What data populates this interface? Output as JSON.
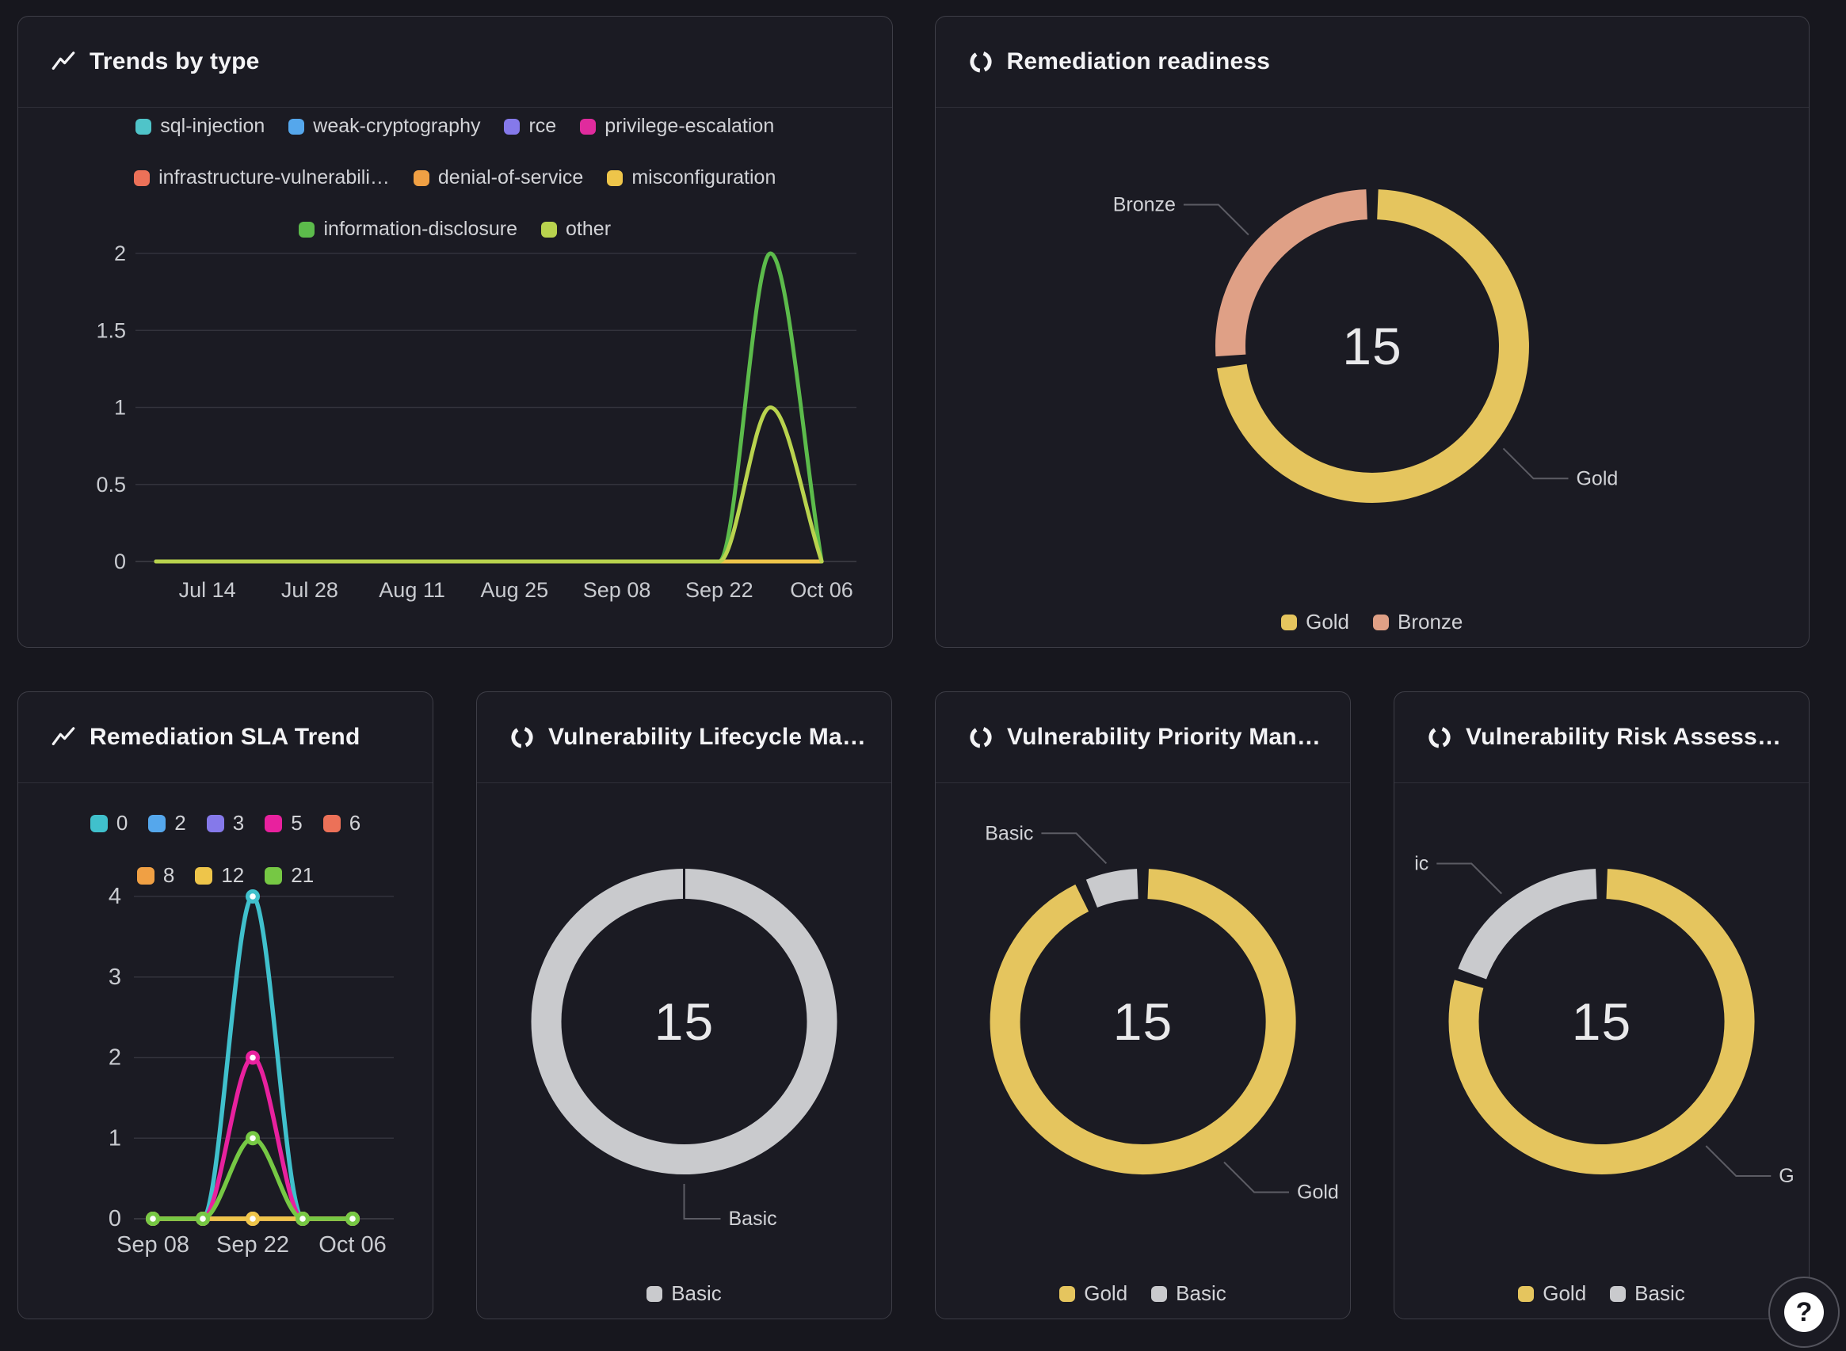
{
  "help": {
    "label": "?"
  },
  "colors": {
    "page_bg": "#17171e",
    "card_bg": "#1b1b23",
    "card_border": "#3e3e47",
    "gold": "#e5c55e",
    "bronze": "#dfa086",
    "basic_gray": "#c9cacd"
  },
  "panels": [
    {
      "id": "trends-by-type",
      "title": "Trends by type",
      "icon": "line-chart-icon"
    },
    {
      "id": "remediation-readiness",
      "title": "Remediation readiness",
      "icon": "donut-chart-icon"
    },
    {
      "id": "remediation-sla-trend",
      "title": "Remediation SLA Trend",
      "icon": "line-chart-icon"
    },
    {
      "id": "vulnerability-lifecycle",
      "title": "Vulnerability Lifecycle Ma…",
      "icon": "donut-chart-icon"
    },
    {
      "id": "vulnerability-priority",
      "title": "Vulnerability Priority Man…",
      "icon": "donut-chart-icon"
    },
    {
      "id": "vulnerability-risk",
      "title": "Vulnerability Risk Assess…",
      "icon": "donut-chart-icon"
    }
  ],
  "chart_data": [
    {
      "panel": "trends-by-type",
      "type": "line",
      "title": "Trends by type",
      "smooth": true,
      "grid": true,
      "legend_position": "top",
      "x": [
        "Jul 07",
        "Jul 14",
        "Jul 21",
        "Jul 28",
        "Aug 04",
        "Aug 11",
        "Aug 18",
        "Aug 25",
        "Sep 01",
        "Sep 08",
        "Sep 15",
        "Sep 22",
        "Sep 29",
        "Oct 06"
      ],
      "x_tick_labels": [
        "Jul 14",
        "Jul 28",
        "Aug 11",
        "Aug 25",
        "Sep 08",
        "Sep 22",
        "Oct 06"
      ],
      "y_ticks": [
        2,
        1.5,
        1,
        0.5,
        0
      ],
      "ylim": [
        0,
        2
      ],
      "legend_rows": [
        [
          "sql-injection",
          "weak-cryptography",
          "rce",
          "privilege-escalation"
        ],
        [
          "infrastructure-vulnerabili…",
          "denial-of-service",
          "misconfiguration"
        ],
        [
          "information-disclosure",
          "other"
        ]
      ],
      "series": [
        {
          "name": "sql-injection",
          "color": "#4fc4c9",
          "values": [
            0,
            0,
            0,
            0,
            0,
            0,
            0,
            0,
            0,
            0,
            0,
            0,
            0,
            0
          ]
        },
        {
          "name": "weak-cryptography",
          "color": "#55a7ec",
          "values": [
            0,
            0,
            0,
            0,
            0,
            0,
            0,
            0,
            0,
            0,
            0,
            0,
            0,
            0
          ]
        },
        {
          "name": "rce",
          "color": "#8579ea",
          "values": [
            0,
            0,
            0,
            0,
            0,
            0,
            0,
            0,
            0,
            0,
            0,
            0,
            0,
            0
          ]
        },
        {
          "name": "privilege-escalation",
          "color": "#e02b9d",
          "values": [
            0,
            0,
            0,
            0,
            0,
            0,
            0,
            0,
            0,
            0,
            0,
            0,
            0,
            0
          ]
        },
        {
          "name": "infrastructure-vulnerabili…",
          "color": "#ec7158",
          "values": [
            0,
            0,
            0,
            0,
            0,
            0,
            0,
            0,
            0,
            0,
            0,
            0,
            0,
            0
          ]
        },
        {
          "name": "denial-of-service",
          "color": "#f0a044",
          "values": [
            0,
            0,
            0,
            0,
            0,
            0,
            0,
            0,
            0,
            0,
            0,
            0,
            0,
            0
          ]
        },
        {
          "name": "misconfiguration",
          "color": "#eec54a",
          "values": [
            0,
            0,
            0,
            0,
            0,
            0,
            0,
            0,
            0,
            0,
            0,
            0,
            0,
            0
          ]
        },
        {
          "name": "information-disclosure",
          "color": "#5cbb4b",
          "values": [
            0,
            0,
            0,
            0,
            0,
            0,
            0,
            0,
            0,
            0,
            0,
            0,
            2,
            0
          ]
        },
        {
          "name": "other",
          "color": "#b9d34e",
          "values": [
            0,
            0,
            0,
            0,
            0,
            0,
            0,
            0,
            0,
            0,
            0,
            0,
            1,
            0
          ]
        }
      ]
    },
    {
      "panel": "remediation-readiness",
      "type": "donut",
      "title": "Remediation readiness",
      "center_value": "15",
      "segments": [
        {
          "label": "Gold",
          "value": 11,
          "color": "#e5c55e"
        },
        {
          "label": "Bronze",
          "value": 4,
          "color": "#dfa086"
        }
      ],
      "callouts": [
        {
          "label": "Bronze",
          "angle": 312
        },
        {
          "label": "Gold",
          "angle": 128
        }
      ],
      "legend": [
        "Gold",
        "Bronze"
      ]
    },
    {
      "panel": "remediation-sla-trend",
      "type": "line",
      "title": "Remediation SLA Trend",
      "smooth": true,
      "grid": true,
      "markers": true,
      "legend_position": "top",
      "x": [
        "Sep 08",
        "Sep 15",
        "Sep 22",
        "Sep 29",
        "Oct 06"
      ],
      "x_tick_labels": [
        "Sep 08",
        "Sep 22",
        "Oct 06"
      ],
      "y_ticks": [
        4,
        3,
        2,
        1,
        0
      ],
      "ylim": [
        0,
        4
      ],
      "legend_rows": [
        [
          "0",
          "2",
          "3",
          "5",
          "6"
        ],
        [
          "8",
          "12",
          "21"
        ]
      ],
      "series": [
        {
          "name": "0",
          "color": "#40c0cc",
          "values": [
            0,
            0,
            4,
            0,
            0
          ]
        },
        {
          "name": "2",
          "color": "#55a7ec",
          "values": [
            0,
            0,
            0,
            0,
            0
          ]
        },
        {
          "name": "3",
          "color": "#8579ea",
          "values": [
            0,
            0,
            0,
            0,
            0
          ]
        },
        {
          "name": "5",
          "color": "#e8219e",
          "values": [
            0,
            0,
            2,
            0,
            0
          ]
        },
        {
          "name": "6",
          "color": "#ec7158",
          "values": [
            0,
            0,
            0,
            0,
            0
          ]
        },
        {
          "name": "8",
          "color": "#f0a044",
          "values": [
            0,
            0,
            0,
            0,
            0
          ]
        },
        {
          "name": "12",
          "color": "#eec54a",
          "values": [
            0,
            0,
            0,
            0,
            0
          ]
        },
        {
          "name": "21",
          "color": "#76c844",
          "values": [
            0,
            0,
            1,
            0,
            0
          ]
        }
      ]
    },
    {
      "panel": "vulnerability-lifecycle",
      "type": "donut",
      "title": "Vulnerability Lifecycle Ma…",
      "center_value": "15",
      "segments": [
        {
          "label": "Basic",
          "value": 15,
          "color": "#c9cacd"
        }
      ],
      "callouts": [
        {
          "label": "Basic",
          "angle": 180
        }
      ],
      "legend": [
        "Basic"
      ]
    },
    {
      "panel": "vulnerability-priority",
      "type": "donut",
      "title": "Vulnerability Priority Man…",
      "center_value": "15",
      "segments": [
        {
          "label": "Gold",
          "value": 14,
          "color": "#e5c55e"
        },
        {
          "label": "Basic",
          "value": 1,
          "color": "#c9cacd"
        }
      ],
      "callouts": [
        {
          "label": "Basic",
          "angle": 347
        },
        {
          "label": "Gold",
          "angle": 150
        }
      ],
      "legend": [
        "Gold",
        "Basic"
      ]
    },
    {
      "panel": "vulnerability-risk",
      "type": "donut",
      "title": "Vulnerability Risk Assess…",
      "center_value": "15",
      "segments": [
        {
          "label": "Gold",
          "value": 12,
          "color": "#e5c55e"
        },
        {
          "label": "Basic",
          "value": 3,
          "color": "#c9cacd"
        }
      ],
      "callouts": [
        {
          "label": "ic",
          "angle": 322
        },
        {
          "label": "G",
          "angle": 140
        }
      ],
      "legend": [
        "Gold",
        "Basic"
      ]
    }
  ]
}
